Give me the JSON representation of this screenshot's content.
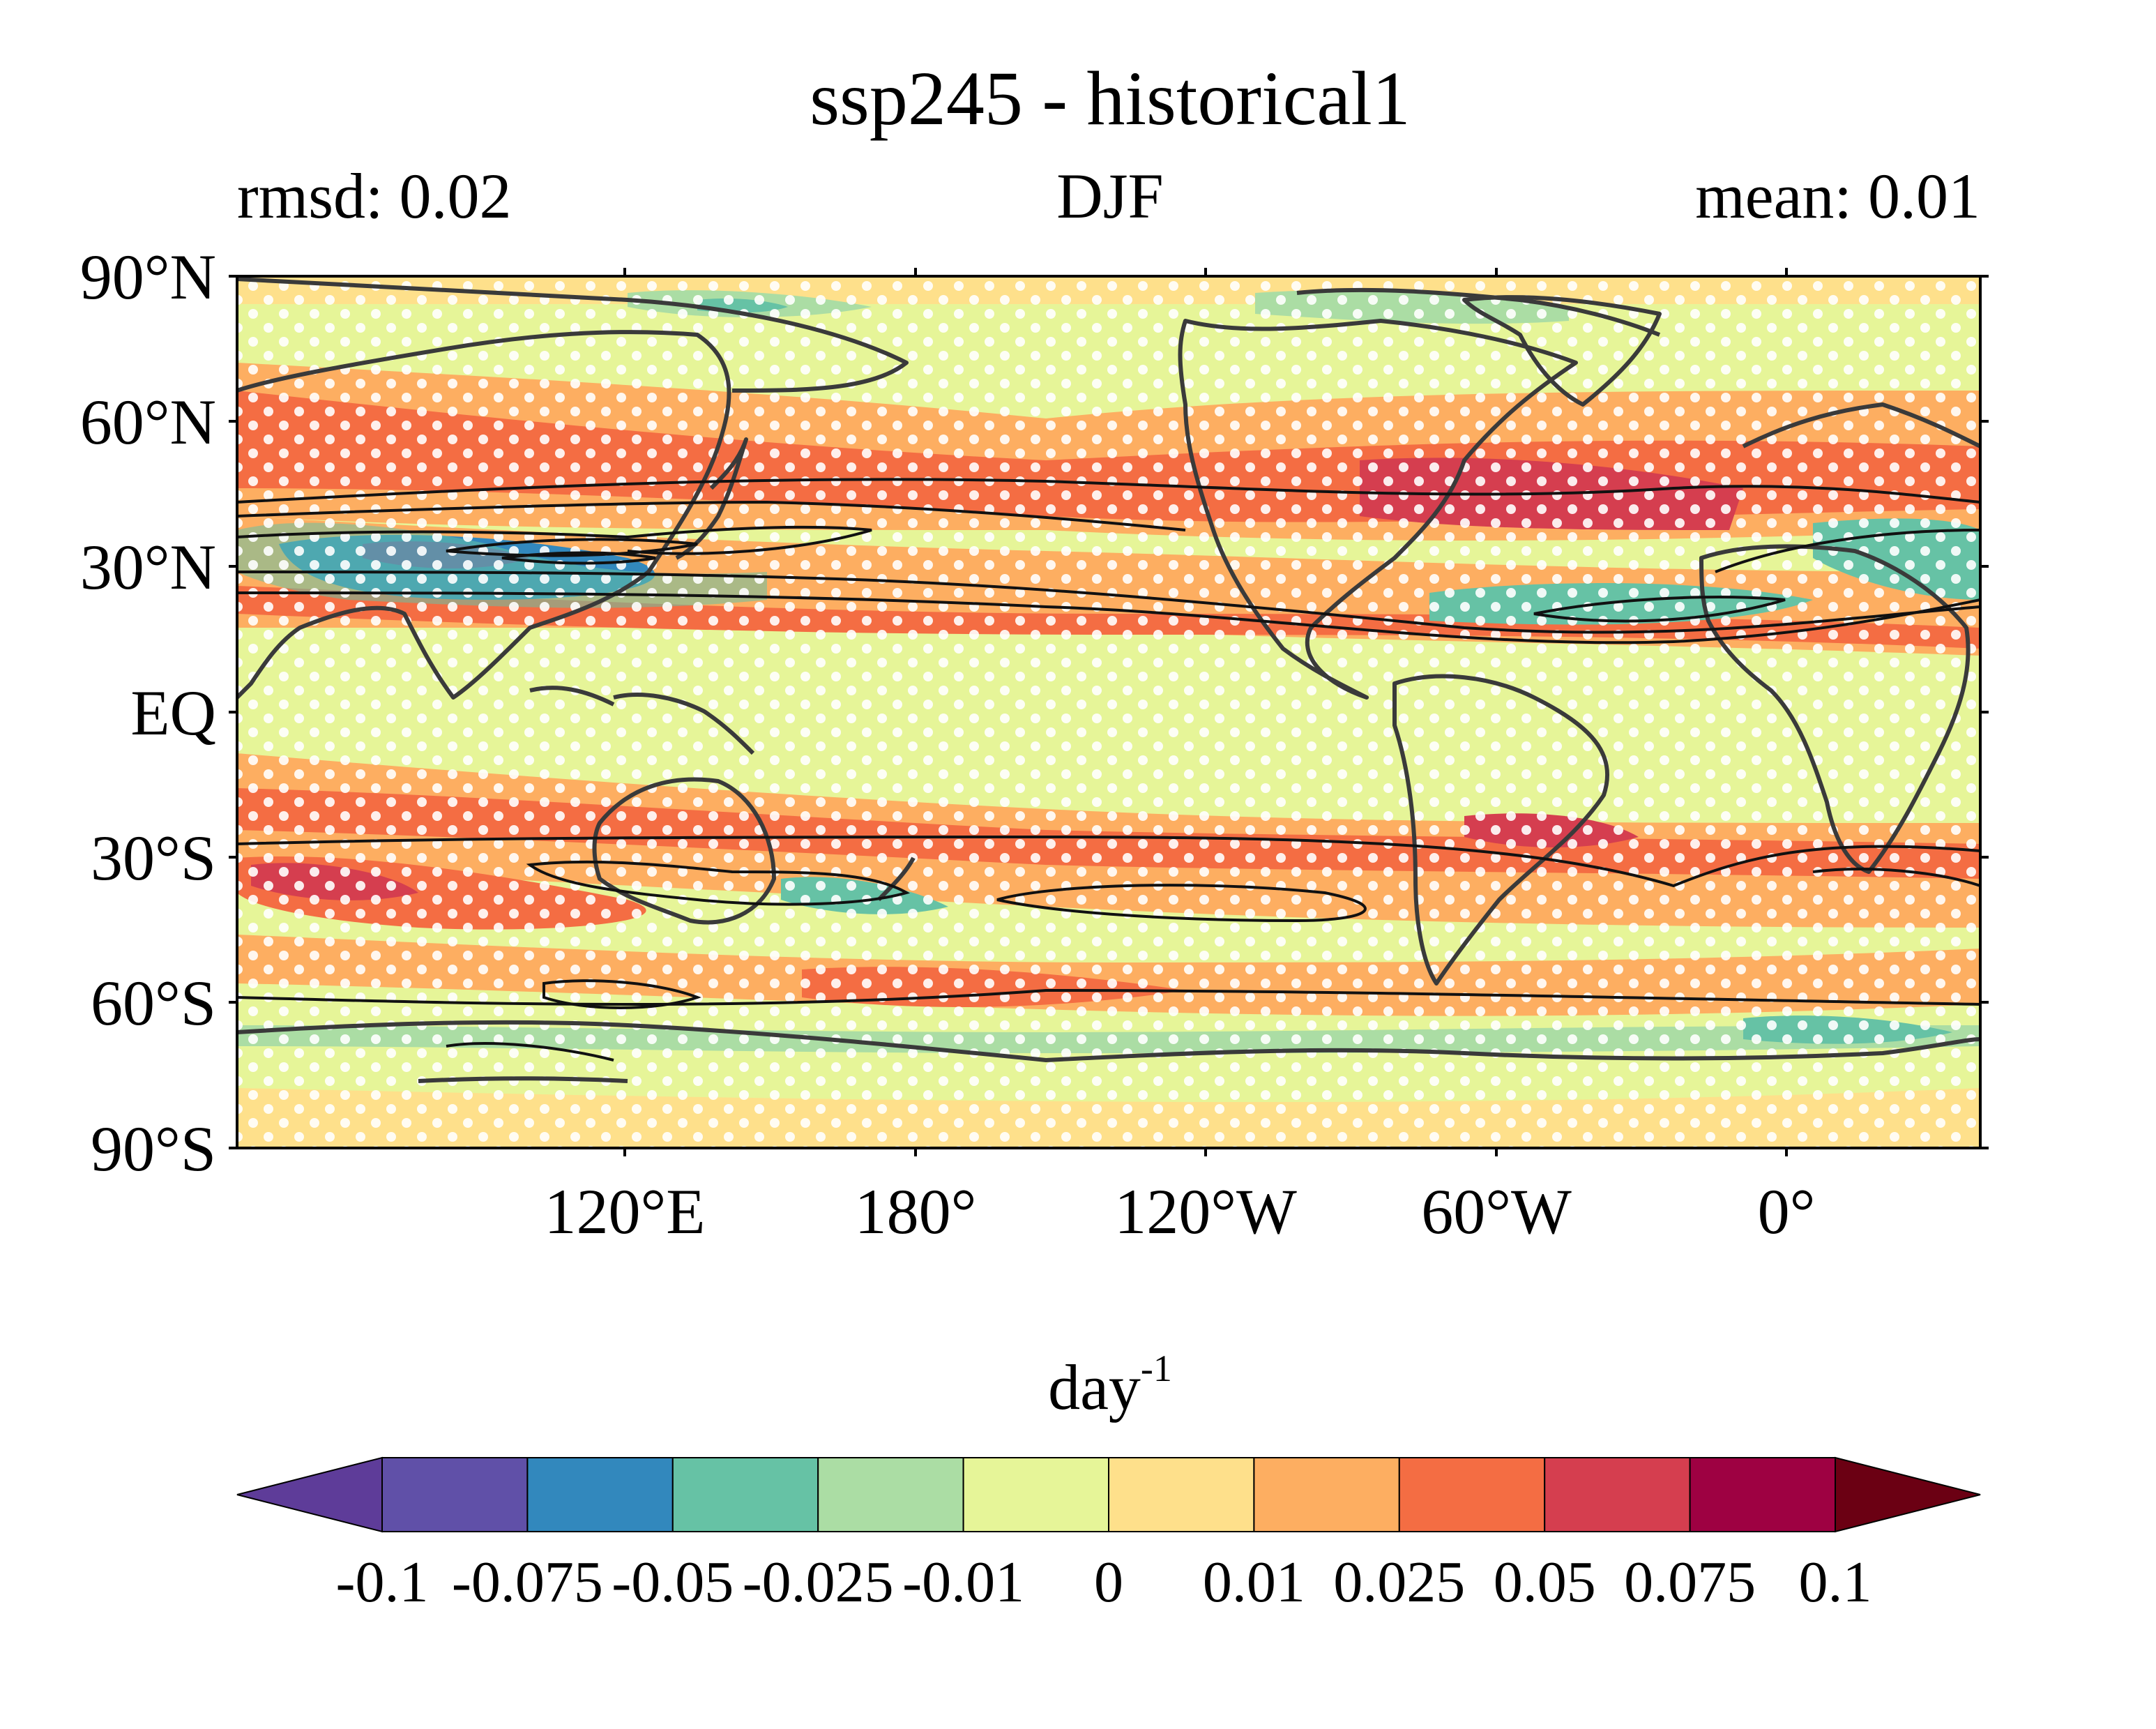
{
  "figure": {
    "title": "ssp245 - historical1",
    "left_label": "rmsd: 0.02",
    "center_label": "DJF",
    "right_label": "mean: 0.01"
  },
  "axes": {
    "lat_ticks": [
      "90°N",
      "60°N",
      "30°N",
      "EQ",
      "30°S",
      "60°S",
      "90°S"
    ],
    "lon_ticks": [
      "120°E",
      "180°",
      "120°W",
      "60°W",
      "0°"
    ]
  },
  "colorbar": {
    "unit_base": "day",
    "unit_exp": "-1",
    "tick_labels": [
      "-0.1",
      "-0.075",
      "-0.05",
      "-0.025",
      "-0.01",
      "0",
      "0.01",
      "0.025",
      "0.05",
      "0.075",
      "0.1"
    ],
    "colors": [
      "#5e3c99",
      "#6050a8",
      "#3288bd",
      "#66c2a5",
      "#abdda4",
      "#e6f598",
      "#fee08b",
      "#fdae61",
      "#f46d43",
      "#d53e4f",
      "#9e0142",
      "#6b0013"
    ]
  },
  "map_colors": {
    "land": "#3a3a3a",
    "stipple": "#ffffff",
    "contour": "#111111"
  }
}
